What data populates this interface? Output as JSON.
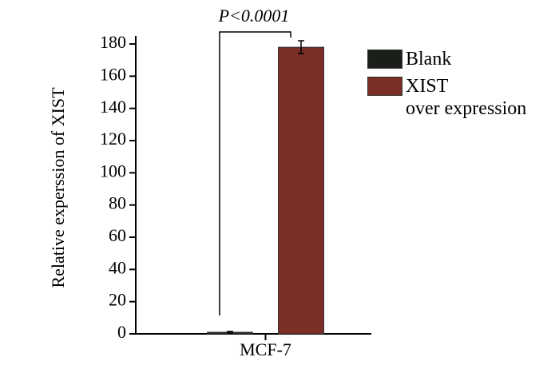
{
  "chart_data": {
    "type": "bar",
    "y_label": "Relative experssion of XIST",
    "annotation": "P<0.0001",
    "categories": [
      "MCF-7"
    ],
    "series": [
      {
        "name": "Blank",
        "color": "#1a1f1a",
        "values": [
          1
        ],
        "errors": [
          0.5
        ]
      },
      {
        "name": "XIST\nover expression",
        "color": "#7b2f26",
        "values": [
          178
        ],
        "errors": [
          4
        ]
      }
    ],
    "ylim": [
      0,
      185
    ],
    "yticks": [
      0,
      20,
      40,
      60,
      80,
      100,
      120,
      140,
      160,
      180
    ],
    "legend": "right"
  }
}
